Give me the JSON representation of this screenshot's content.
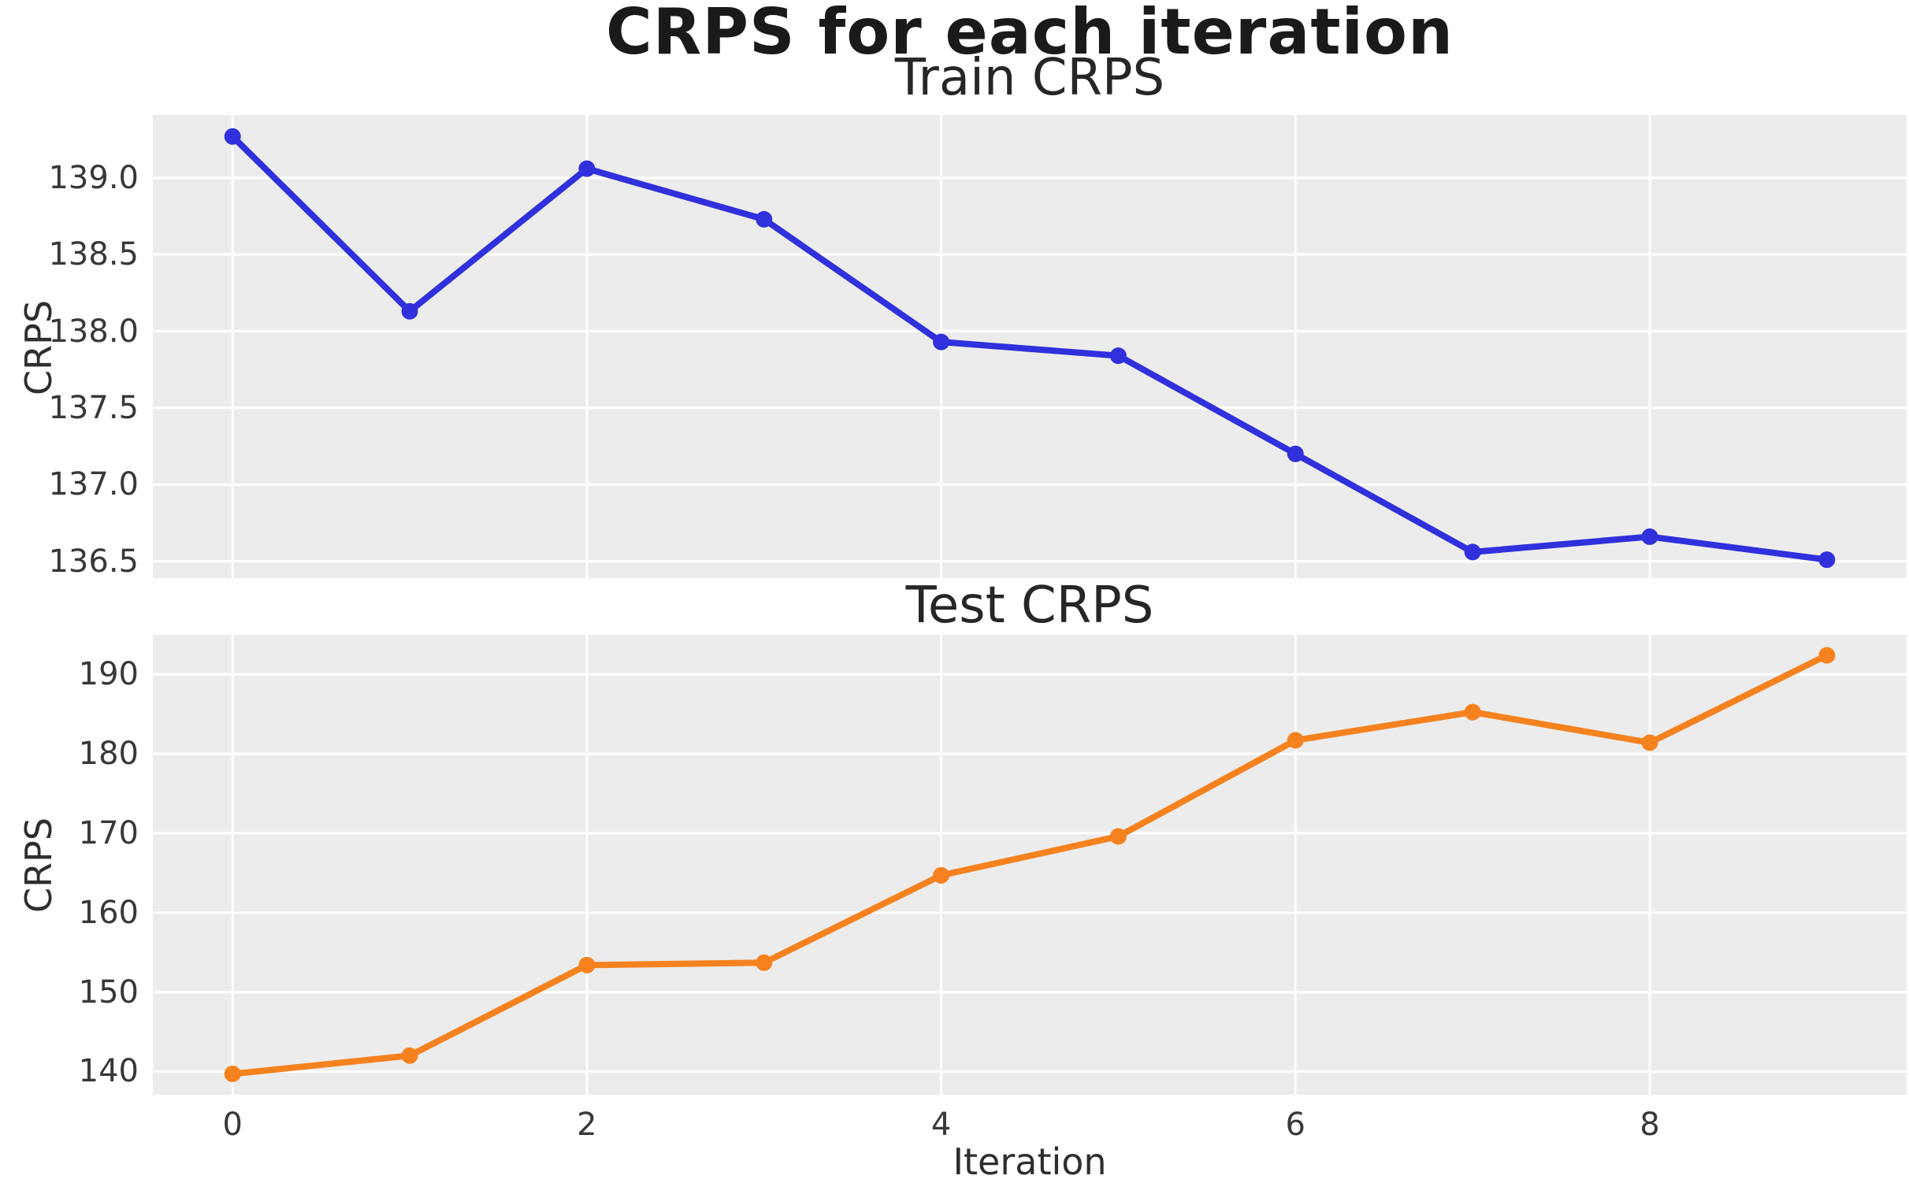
{
  "figure": {
    "title": "CRPS for each iteration",
    "background": "#ffffff",
    "plot_background": "#ececec",
    "grid_color": "#ffffff",
    "title_color": "#1a1a1a",
    "tick_color": "#383838"
  },
  "chart_data": [
    {
      "type": "line",
      "title": "Train CRPS",
      "ylabel": "CRPS",
      "x": [
        0,
        1,
        2,
        3,
        4,
        5,
        6,
        7,
        8,
        9
      ],
      "series": [
        {
          "name": "Train CRPS",
          "color": "#3030dd",
          "values": [
            139.27,
            138.13,
            139.06,
            138.73,
            137.93,
            137.84,
            137.2,
            136.56,
            136.66,
            136.51
          ]
        }
      ],
      "xlim": [
        -0.45,
        9.45
      ],
      "ylim": [
        136.39,
        139.41
      ],
      "yticks": [
        139.0,
        138.5,
        138.0,
        137.5,
        137.0,
        136.5
      ],
      "ytick_labels": [
        "139.0",
        "138.5",
        "138.0",
        "137.5",
        "137.0",
        "136.5"
      ],
      "xticks": [
        0,
        2,
        4,
        6,
        8
      ],
      "xtick_labels": [],
      "grid": true,
      "legend": false
    },
    {
      "type": "line",
      "title": "Test CRPS",
      "ylabel": "CRPS",
      "xlabel": "Iteration",
      "x": [
        0,
        1,
        2,
        3,
        4,
        5,
        6,
        7,
        8,
        9
      ],
      "series": [
        {
          "name": "Test CRPS",
          "color": "#f6821f",
          "values": [
            139.7,
            142.0,
            153.4,
            153.7,
            164.7,
            169.6,
            181.7,
            185.25,
            181.4,
            192.4
          ]
        }
      ],
      "xlim": [
        -0.45,
        9.45
      ],
      "ylim": [
        137.07,
        194.98
      ],
      "yticks": [
        190,
        180,
        170,
        160,
        150,
        140
      ],
      "ytick_labels": [
        "190",
        "180",
        "170",
        "160",
        "150",
        "140"
      ],
      "xticks": [
        0,
        2,
        4,
        6,
        8
      ],
      "xtick_labels": [
        "0",
        "2",
        "4",
        "6",
        "8"
      ],
      "grid": true,
      "legend": false
    }
  ]
}
